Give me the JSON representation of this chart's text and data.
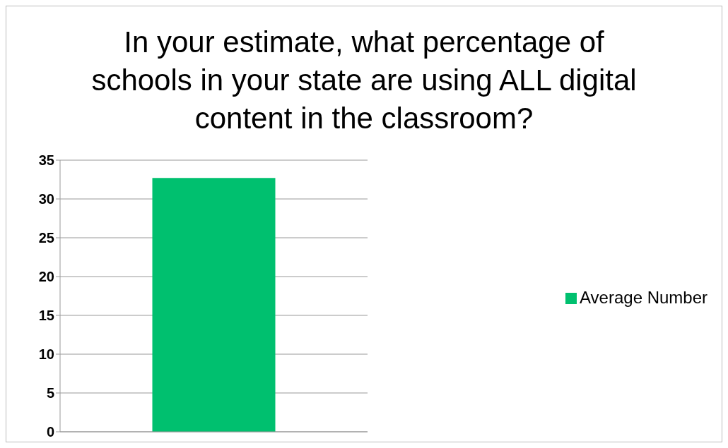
{
  "chart_data": {
    "type": "bar",
    "title": "In your estimate, what percentage of schools in your state are using ALL digital content in the classroom?",
    "categories": [
      null
    ],
    "series": [
      {
        "name": "Average Number",
        "color": "#00c06f",
        "values": [
          32.7
        ]
      }
    ],
    "ylim": [
      0,
      35
    ],
    "yticks": [
      0,
      5,
      10,
      15,
      20,
      25,
      30,
      35
    ],
    "grid": "y",
    "legend": "right",
    "tick_labels": "y"
  }
}
